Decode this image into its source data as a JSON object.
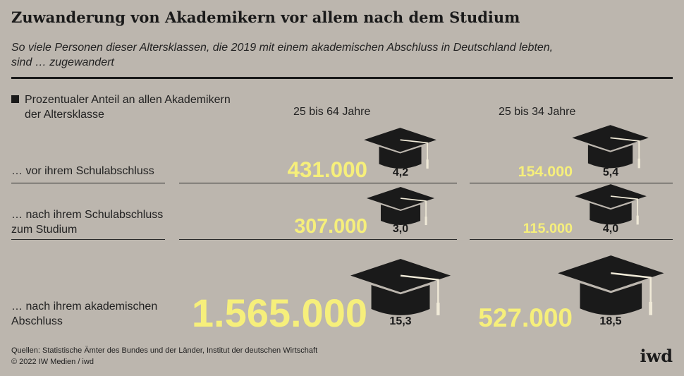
{
  "title": "Zuwanderung von Akademikern vor allem nach dem Studium",
  "subtitle": "So viele Personen dieser Altersklassen, die 2019 mit einem akademischen Abschluss in Deutschland lebten, sind … zugewandert",
  "legend": {
    "line1": "Prozentualer Anteil an allen Akademikern",
    "line2": "der Altersklasse"
  },
  "colors": {
    "background": "#bcb6ae",
    "number": "#f6ef7b",
    "text": "#1c1c1c"
  },
  "icons": {
    "pct_marker": "graduation-cap-icon"
  },
  "chart_data": {
    "type": "table",
    "title": "Zuwanderung von Akademikern vor allem nach dem Studium",
    "columns": [
      "25 bis 64 Jahre",
      "25 bis 34 Jahre"
    ],
    "rows": [
      {
        "label_lines": [
          "… vor ihrem Schulabschluss"
        ],
        "cells": [
          {
            "count": "431.000",
            "count_value": 431000,
            "share": "4,2",
            "share_value": 4.2
          },
          {
            "count": "154.000",
            "count_value": 154000,
            "share": "5,4",
            "share_value": 5.4
          }
        ]
      },
      {
        "label_lines": [
          "… nach ihrem Schulabschluss",
          "zum Studium"
        ],
        "cells": [
          {
            "count": "307.000",
            "count_value": 307000,
            "share": "3,0",
            "share_value": 3.0
          },
          {
            "count": "115.000",
            "count_value": 115000,
            "share": "4,0",
            "share_value": 4.0
          }
        ]
      },
      {
        "label_lines": [
          "… nach ihrem akademischen",
          "Abschluss"
        ],
        "cells": [
          {
            "count": "1.565.000",
            "count_value": 1565000,
            "share": "15,3",
            "share_value": 15.3
          },
          {
            "count": "527.000",
            "count_value": 527000,
            "share": "18,5",
            "share_value": 18.5
          }
        ]
      }
    ]
  },
  "footer": {
    "sources": "Quellen: Statistische Ämter des Bundes und der Länder, Institut der deutschen Wirtschaft",
    "copyright": "© 2022 IW Medien / iwd"
  },
  "logo": "iwd"
}
